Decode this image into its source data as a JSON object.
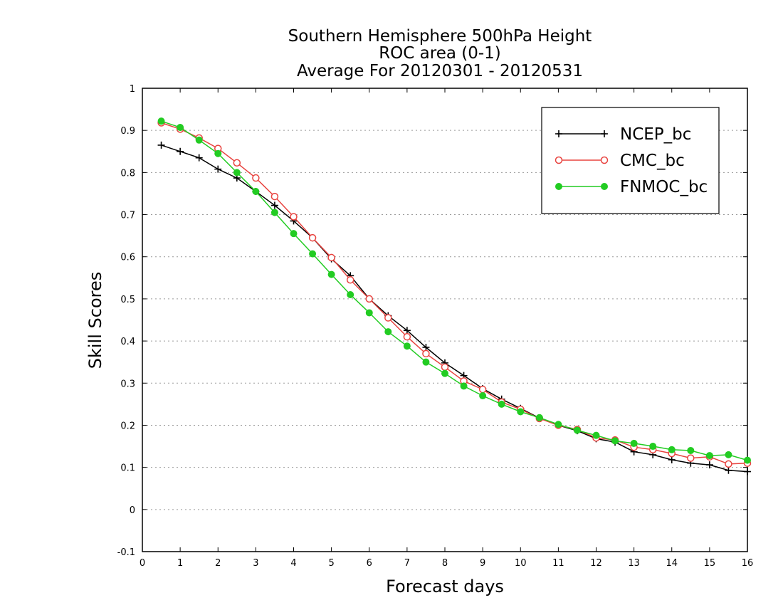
{
  "chart_data": {
    "type": "line",
    "title": [
      "Southern Hemisphere 500hPa Height",
      "ROC area (0-1)",
      "Average For 20120301 - 20120531"
    ],
    "xlabel": "Forecast days",
    "ylabel": "Skill Scores",
    "xlim": [
      0,
      16
    ],
    "ylim": [
      -0.1,
      1
    ],
    "xticks": [
      0,
      1,
      2,
      3,
      4,
      5,
      6,
      7,
      8,
      9,
      10,
      11,
      12,
      13,
      14,
      15,
      16
    ],
    "yticks": [
      -0.1,
      0,
      0.1,
      0.2,
      0.3,
      0.4,
      0.5,
      0.6,
      0.7,
      0.8,
      0.9,
      1
    ],
    "ytick_labels": [
      "-0.1",
      "0",
      "0.1",
      "0.2",
      "0.3",
      "0.4",
      "0.5",
      "0.6",
      "0.7",
      "0.8",
      "0.9",
      "1"
    ],
    "grid": "horizontal dotted",
    "legend_position": "top-right",
    "x": [
      0.5,
      1,
      1.5,
      2,
      2.5,
      3,
      3.5,
      4,
      4.5,
      5,
      5.5,
      6,
      6.5,
      7,
      7.5,
      8,
      8.5,
      9,
      9.5,
      10,
      10.5,
      11,
      11.5,
      12,
      12.5,
      13,
      13.5,
      14,
      14.5,
      15,
      15.5,
      16
    ],
    "series": [
      {
        "name": "NCEP_bc",
        "color": "#000000",
        "marker": "plus",
        "values": [
          0.865,
          0.85,
          0.835,
          0.808,
          0.787,
          0.755,
          0.722,
          0.685,
          0.645,
          0.595,
          0.555,
          0.5,
          0.46,
          0.425,
          0.385,
          0.348,
          0.318,
          0.287,
          0.262,
          0.24,
          0.217,
          0.2,
          0.187,
          0.168,
          0.16,
          0.137,
          0.13,
          0.118,
          0.11,
          0.106,
          0.093,
          0.09
        ]
      },
      {
        "name": "CMC_bc",
        "color": "#e8433f",
        "marker": "open-circle",
        "values": [
          0.918,
          0.903,
          0.882,
          0.857,
          0.823,
          0.787,
          0.743,
          0.695,
          0.645,
          0.598,
          0.545,
          0.5,
          0.455,
          0.41,
          0.37,
          0.338,
          0.305,
          0.285,
          0.255,
          0.238,
          0.216,
          0.2,
          0.19,
          0.17,
          0.165,
          0.148,
          0.142,
          0.133,
          0.122,
          0.125,
          0.108,
          0.11
        ]
      },
      {
        "name": "FNMOC_bc",
        "color": "#22cc22",
        "marker": "filled-circle",
        "values": [
          0.922,
          0.907,
          0.877,
          0.845,
          0.8,
          0.755,
          0.705,
          0.655,
          0.607,
          0.558,
          0.51,
          0.467,
          0.422,
          0.388,
          0.35,
          0.323,
          0.293,
          0.27,
          0.25,
          0.232,
          0.218,
          0.202,
          0.188,
          0.176,
          0.163,
          0.157,
          0.15,
          0.142,
          0.14,
          0.128,
          0.13,
          0.117
        ]
      }
    ]
  }
}
